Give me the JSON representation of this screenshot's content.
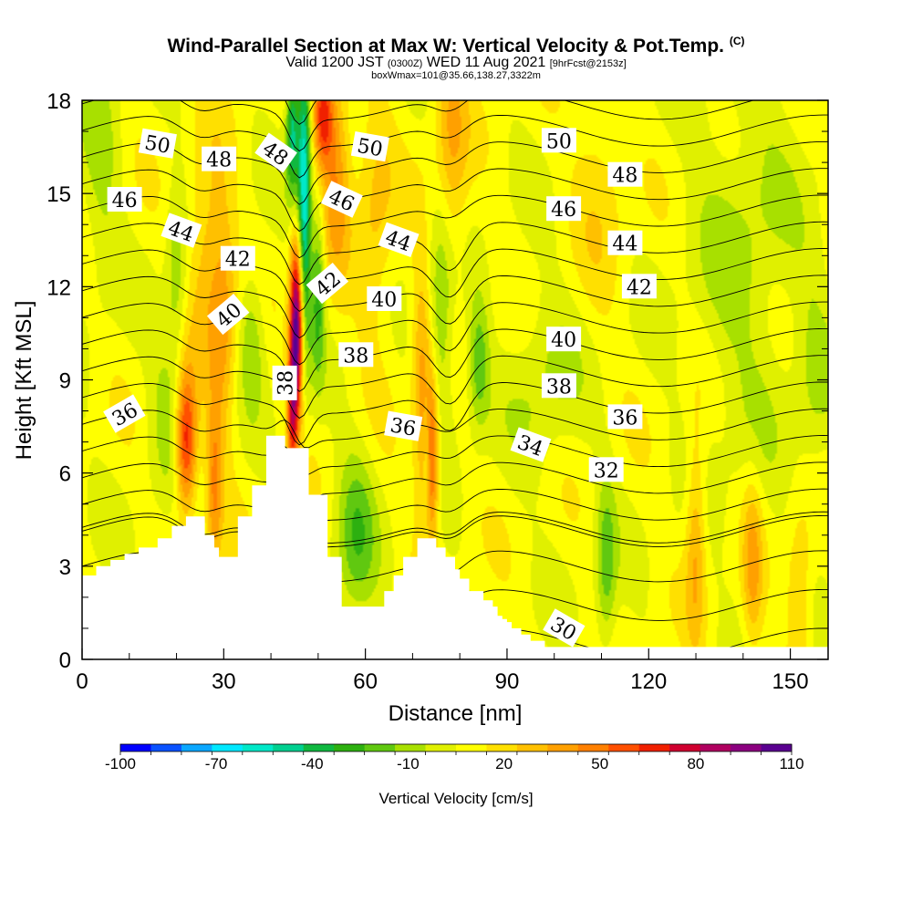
{
  "header": {
    "title": "Wind-Parallel Section at Max W: Vertical Velocity & Pot.Temp.",
    "copyright": "(C)",
    "valid_pre": "Valid 1200 JST ",
    "valid_utc": "(0300Z)",
    "valid_mid": " WED 11 Aug 2021 ",
    "valid_fcst": "[9hrFcst@2153z]",
    "box_info": "boxWmax=101@35.66,138.27,3322m"
  },
  "chart_data": {
    "type": "heatmap",
    "xlabel": "Distance [nm]",
    "ylabel": "Height [Kft MSL]",
    "xlim": [
      0,
      158
    ],
    "ylim": [
      0,
      18
    ],
    "x_ticks": [
      0,
      30,
      60,
      90,
      120,
      150
    ],
    "x_tick_labels": [
      "0",
      "30",
      "60",
      "90",
      "120",
      "150"
    ],
    "y_ticks": [
      0,
      3,
      6,
      9,
      12,
      15,
      18
    ],
    "y_tick_labels": [
      "0",
      "3",
      "6",
      "9",
      "12",
      "15",
      "18"
    ],
    "colorbar": {
      "label": "Vertical Velocity [cm/s]",
      "min": -100,
      "max": 110,
      "tick_values": [
        -100,
        -70,
        -40,
        -10,
        20,
        50,
        80,
        110
      ],
      "tick_labels": [
        "-100",
        "-70",
        "-40",
        "-10",
        "20",
        "50",
        "80",
        "110"
      ],
      "colors": [
        "#0000ff",
        "#0a52ff",
        "#0ba7ff",
        "#00e8ff",
        "#00e8c8",
        "#00d090",
        "#10b840",
        "#2db010",
        "#60c810",
        "#a8e000",
        "#e0f000",
        "#ffff00",
        "#ffe000",
        "#ffc000",
        "#ffa000",
        "#ff8000",
        "#ff5000",
        "#f02000",
        "#d00030",
        "#b00060",
        "#8c0080",
        "#5a0090"
      ]
    },
    "contour_labels": [
      {
        "text": "50",
        "x": 16,
        "y": 16.6,
        "rot": 10
      },
      {
        "text": "48",
        "x": 29,
        "y": 16.1,
        "rot": 0
      },
      {
        "text": "48",
        "x": 41,
        "y": 16.3,
        "rot": 35
      },
      {
        "text": "50",
        "x": 61,
        "y": 16.5,
        "rot": 10
      },
      {
        "text": "50",
        "x": 101,
        "y": 16.7,
        "rot": 0
      },
      {
        "text": "48",
        "x": 115,
        "y": 15.6,
        "rot": 0
      },
      {
        "text": "46",
        "x": 9,
        "y": 14.8,
        "rot": 0
      },
      {
        "text": "46",
        "x": 55,
        "y": 14.8,
        "rot": 25
      },
      {
        "text": "46",
        "x": 102,
        "y": 14.5,
        "rot": 0
      },
      {
        "text": "44",
        "x": 21,
        "y": 13.8,
        "rot": 20
      },
      {
        "text": "44",
        "x": 67,
        "y": 13.5,
        "rot": 20
      },
      {
        "text": "44",
        "x": 115,
        "y": 13.4,
        "rot": 0
      },
      {
        "text": "42",
        "x": 33,
        "y": 12.9,
        "rot": 0
      },
      {
        "text": "42",
        "x": 52,
        "y": 12.1,
        "rot": -40
      },
      {
        "text": "42",
        "x": 118,
        "y": 12.0,
        "rot": 0
      },
      {
        "text": "40",
        "x": 31,
        "y": 11.1,
        "rot": -40
      },
      {
        "text": "40",
        "x": 64,
        "y": 11.6,
        "rot": 0
      },
      {
        "text": "40",
        "x": 102,
        "y": 10.3,
        "rot": 0
      },
      {
        "text": "38",
        "x": 58,
        "y": 9.8,
        "rot": 0
      },
      {
        "text": "38",
        "x": 43,
        "y": 8.9,
        "rot": -90
      },
      {
        "text": "38",
        "x": 101,
        "y": 8.8,
        "rot": 0
      },
      {
        "text": "36",
        "x": 9,
        "y": 7.9,
        "rot": -30
      },
      {
        "text": "36",
        "x": 68,
        "y": 7.5,
        "rot": 10
      },
      {
        "text": "36",
        "x": 115,
        "y": 7.8,
        "rot": 0
      },
      {
        "text": "34",
        "x": 95,
        "y": 6.9,
        "rot": 20
      },
      {
        "text": "32",
        "x": 111,
        "y": 6.1,
        "rot": 0
      },
      {
        "text": "30",
        "x": 102,
        "y": 1.0,
        "rot": 30
      }
    ],
    "theta_levels": [
      30,
      31,
      32,
      33,
      34,
      35,
      36,
      37,
      38,
      39,
      40,
      41,
      42,
      43,
      44,
      45,
      46,
      47,
      48,
      49,
      50,
      51
    ],
    "terrain_kft": [
      [
        0,
        2.7
      ],
      [
        3,
        3.0
      ],
      [
        6,
        3.2
      ],
      [
        9,
        3.4
      ],
      [
        12,
        3.6
      ],
      [
        15,
        3.6
      ],
      [
        16,
        3.9
      ],
      [
        19,
        4.3
      ],
      [
        22,
        4.6
      ],
      [
        25,
        4.6
      ],
      [
        26,
        4.0
      ],
      [
        28,
        3.6
      ],
      [
        29,
        3.3
      ],
      [
        31,
        3.3
      ],
      [
        33,
        4.6
      ],
      [
        34,
        4.6
      ],
      [
        36,
        5.6
      ],
      [
        37,
        5.6
      ],
      [
        39,
        7.2
      ],
      [
        42,
        7.2
      ],
      [
        43,
        6.8
      ],
      [
        45,
        6.8
      ],
      [
        46,
        6.8
      ],
      [
        47,
        6.8
      ],
      [
        48,
        5.3
      ],
      [
        49,
        5.3
      ],
      [
        51,
        5.3
      ],
      [
        52,
        3.3
      ],
      [
        54,
        3.3
      ],
      [
        55,
        1.7
      ],
      [
        58,
        1.7
      ],
      [
        61,
        1.7
      ],
      [
        63,
        1.7
      ],
      [
        64,
        2.2
      ],
      [
        65,
        2.2
      ],
      [
        66,
        2.7
      ],
      [
        67,
        2.7
      ],
      [
        68,
        3.3
      ],
      [
        70,
        3.3
      ],
      [
        71,
        3.9
      ],
      [
        73,
        3.9
      ],
      [
        74,
        3.9
      ],
      [
        75,
        3.6
      ],
      [
        76,
        3.6
      ],
      [
        77,
        3.3
      ],
      [
        78,
        3.3
      ],
      [
        79,
        2.9
      ],
      [
        80,
        2.6
      ],
      [
        81,
        2.6
      ],
      [
        82,
        2.2
      ],
      [
        84,
        2.2
      ],
      [
        85,
        1.9
      ],
      [
        87,
        1.7
      ],
      [
        88,
        1.4
      ],
      [
        89,
        1.3
      ],
      [
        90,
        1.2
      ],
      [
        91,
        1.0
      ],
      [
        92,
        1.0
      ],
      [
        93,
        0.8
      ],
      [
        94,
        0.8
      ],
      [
        95,
        0.6
      ],
      [
        97,
        0.6
      ],
      [
        98,
        0.4
      ],
      [
        102,
        0.4
      ],
      [
        158,
        0.4
      ]
    ],
    "updrafts": [
      {
        "x": 22,
        "z": 7.0,
        "sx": 1.6,
        "sz": 1.6,
        "w": 70
      },
      {
        "x": 28,
        "z": 5.5,
        "sx": 1.2,
        "sz": 2.0,
        "w": 35
      },
      {
        "x": 30,
        "z": 11.0,
        "sx": 2.0,
        "sz": 3.0,
        "w": 30
      },
      {
        "x": 26,
        "z": 13.0,
        "sx": 2.5,
        "sz": 2.5,
        "w": 25
      },
      {
        "x": 45.5,
        "z": 10.8,
        "sx": 1.0,
        "sz": 2.0,
        "w": 110
      },
      {
        "x": 44.5,
        "z": 8.0,
        "sx": 0.8,
        "sz": 1.5,
        "w": 55
      },
      {
        "x": 51,
        "z": 17.5,
        "sx": 1.5,
        "sz": 1.2,
        "w": 60
      },
      {
        "x": 54,
        "z": 16.0,
        "sx": 2.0,
        "sz": 2.5,
        "w": 35
      },
      {
        "x": 74,
        "z": 6.5,
        "sx": 1.2,
        "sz": 1.8,
        "w": 60
      },
      {
        "x": 72,
        "z": 9.0,
        "sx": 1.5,
        "sz": 3.0,
        "w": 30
      },
      {
        "x": 78,
        "z": 16.5,
        "sx": 2.5,
        "sz": 3.0,
        "w": 30
      },
      {
        "x": 130,
        "z": 4.0,
        "sx": 1.5,
        "sz": 2.5,
        "w": 30
      },
      {
        "x": 142,
        "z": 3.0,
        "sx": 1.5,
        "sz": 2.0,
        "w": 28
      },
      {
        "x": 152,
        "z": 2.0,
        "sx": 2.0,
        "sz": 2.0,
        "w": 22
      },
      {
        "x": 62,
        "z": 14.0,
        "sx": 3.0,
        "sz": 3.0,
        "w": 20
      },
      {
        "x": 110,
        "z": 16.0,
        "sx": 4.0,
        "sz": 3.0,
        "w": 15
      }
    ],
    "downdrafts": [
      {
        "x": 47,
        "z": 15.0,
        "sx": 1.0,
        "sz": 3.5,
        "w": -75
      },
      {
        "x": 44.5,
        "z": 17.0,
        "sx": 0.9,
        "sz": 1.5,
        "w": -55
      },
      {
        "x": 50,
        "z": 12.0,
        "sx": 1.0,
        "sz": 2.0,
        "w": -35
      },
      {
        "x": 76,
        "z": 11.0,
        "sx": 2.0,
        "sz": 3.0,
        "w": -30
      },
      {
        "x": 73,
        "z": 6.5,
        "sx": 0.6,
        "sz": 1.5,
        "w": -30
      },
      {
        "x": 84,
        "z": 9.5,
        "sx": 1.6,
        "sz": 1.5,
        "w": -30
      },
      {
        "x": 111,
        "z": 3.0,
        "sx": 1.5,
        "sz": 2.0,
        "w": -28
      },
      {
        "x": 58,
        "z": 4.0,
        "sx": 3.0,
        "sz": 2.0,
        "w": -28
      },
      {
        "x": 36,
        "z": 10.5,
        "sx": 2.0,
        "sz": 1.5,
        "w": -22
      },
      {
        "x": 20,
        "z": 12.5,
        "sx": 1.5,
        "sz": 2.0,
        "w": -20
      },
      {
        "x": 18,
        "z": 8.0,
        "sx": 3.0,
        "sz": 2.0,
        "w": -15
      },
      {
        "x": 4,
        "z": 16.0,
        "sx": 3.0,
        "sz": 3.0,
        "w": -15
      },
      {
        "x": 140,
        "z": 13.0,
        "sx": 8.0,
        "sz": 5.0,
        "w": -15
      },
      {
        "x": 98,
        "z": 9.0,
        "sx": 5.0,
        "sz": 2.0,
        "w": -15
      },
      {
        "x": 155,
        "z": 9.0,
        "sx": 3.0,
        "sz": 3.0,
        "w": -12
      }
    ]
  }
}
